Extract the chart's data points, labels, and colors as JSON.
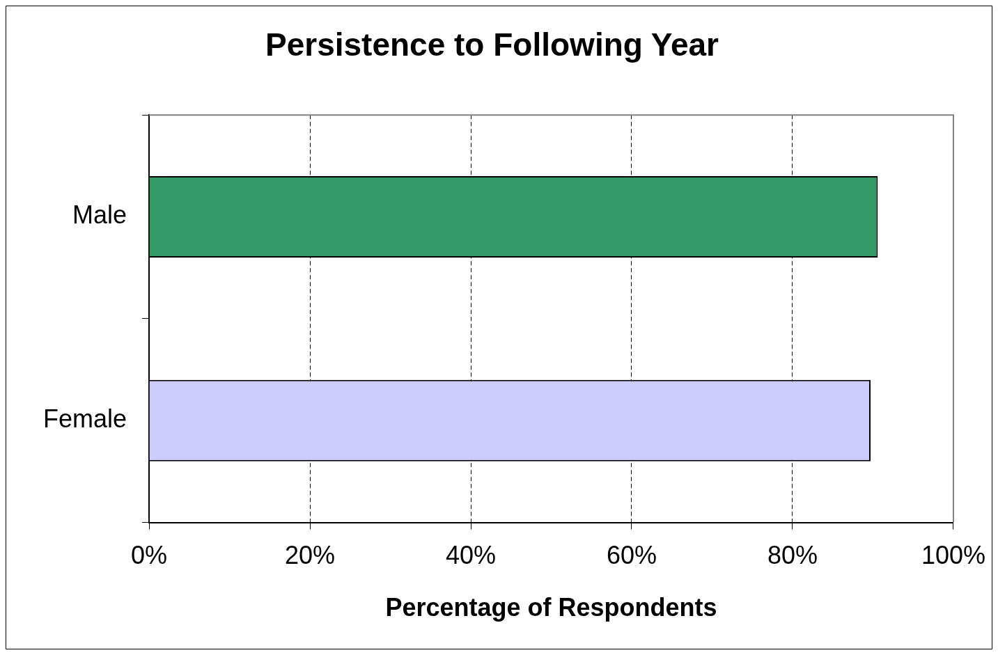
{
  "chart_data": {
    "type": "bar",
    "orientation": "horizontal",
    "title": "Persistence to Following Year",
    "xlabel": "Percentage of Respondents",
    "categories": [
      "Male",
      "Female"
    ],
    "values": [
      90.6,
      89.7
    ],
    "colors": [
      "#339966",
      "#ccccff"
    ],
    "xlim": [
      0,
      100
    ],
    "xticks": [
      {
        "value": 0,
        "label": "0%"
      },
      {
        "value": 20,
        "label": "20%"
      },
      {
        "value": 40,
        "label": "40%"
      },
      {
        "value": 60,
        "label": "60%"
      },
      {
        "value": 80,
        "label": "80%"
      },
      {
        "value": 100,
        "label": "100%"
      }
    ],
    "grid": "x",
    "legend": false
  }
}
